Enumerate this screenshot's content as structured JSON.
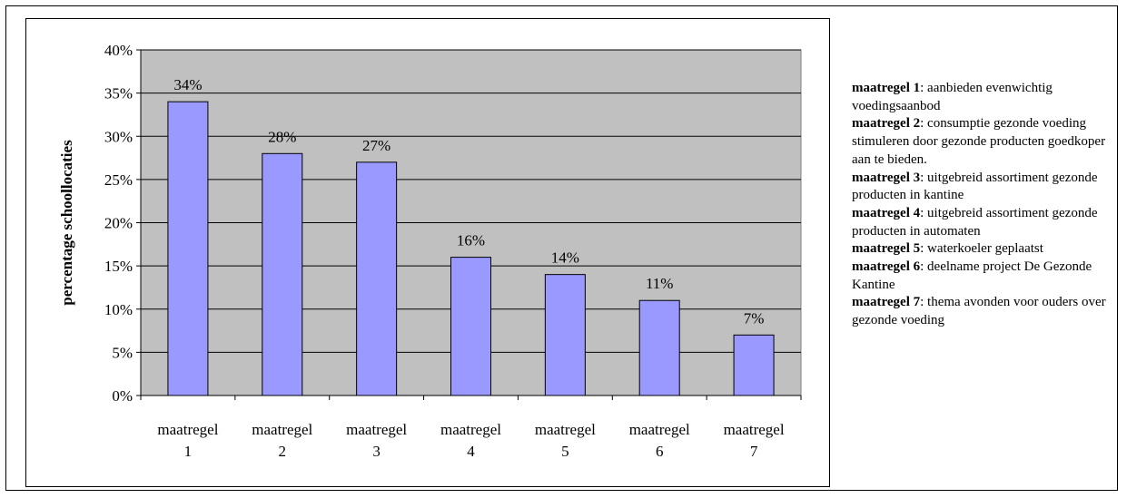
{
  "chart_data": {
    "type": "bar",
    "categories": [
      [
        "maatregel",
        "1"
      ],
      [
        "maatregel",
        "2"
      ],
      [
        "maatregel",
        "3"
      ],
      [
        "maatregel",
        "4"
      ],
      [
        "maatregel",
        "5"
      ],
      [
        "maatregel",
        "6"
      ],
      [
        "maatregel",
        "7"
      ]
    ],
    "values": [
      34,
      28,
      27,
      16,
      14,
      11,
      7
    ],
    "data_labels": [
      "34%",
      "28%",
      "27%",
      "16%",
      "14%",
      "11%",
      "7%"
    ],
    "ylabel": "percentage schoollocaties",
    "xlabel": "",
    "ylim": [
      0,
      40
    ],
    "y_ticks": [
      0,
      5,
      10,
      15,
      20,
      25,
      30,
      35,
      40
    ],
    "y_tick_labels": [
      "0%",
      "5%",
      "10%",
      "15%",
      "20%",
      "25%",
      "30%",
      "35%",
      "40%"
    ],
    "grid": true,
    "colors": {
      "bar_fill": "#9999ff",
      "bar_stroke": "#000000",
      "plot_bg": "#c0c0c0",
      "gridline": "#000000"
    }
  },
  "legend": {
    "items": [
      {
        "label": "maatregel 1",
        "text": ": aanbieden evenwichtig voedingsaanbod"
      },
      {
        "label": "maatregel 2",
        "text": ": consumptie gezonde voeding stimuleren door gezonde producten goedkoper aan te bieden."
      },
      {
        "label": "maatregel 3",
        "text": ": uitgebreid assortiment gezonde producten in kantine"
      },
      {
        "label": "maatregel 4",
        "text": ": uitgebreid assortiment gezonde producten in automaten"
      },
      {
        "label": "maatregel 5",
        "text": ": waterkoeler geplaatst"
      },
      {
        "label": "maatregel 6",
        "text": ": deelname project De Gezonde Kantine"
      },
      {
        "label": "maatregel 7",
        "text": ": thema avonden voor ouders over gezonde voeding"
      }
    ]
  }
}
